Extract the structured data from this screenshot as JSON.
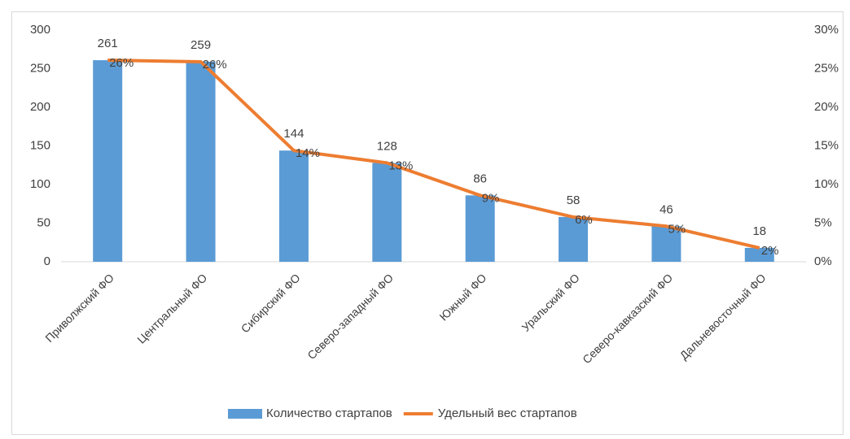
{
  "chart_data": {
    "type": "combo",
    "categories": [
      "Приволжский ФО",
      "Центральный ФО",
      "Сибирский ФО",
      "Северо-западный ФО",
      "Южный ФО",
      "Уральский ФО",
      "Северо-кавказский ФО",
      "Дальневосточный ФО"
    ],
    "series": [
      {
        "name": "Количество стартапов",
        "type": "bar",
        "color": "#5b9bd5",
        "values": [
          261,
          259,
          144,
          128,
          86,
          58,
          46,
          18
        ]
      },
      {
        "name": "Удельный вес стартапов",
        "type": "line",
        "axis": "y2",
        "color": "#ed7d31",
        "values": [
          26.1,
          25.9,
          14.4,
          12.8,
          8.6,
          5.8,
          4.6,
          1.8
        ],
        "value_labels": [
          "26%",
          "26%",
          "14%",
          "13%",
          "9%",
          "6%",
          "5%",
          "2%"
        ]
      }
    ],
    "ylim": [
      0,
      300
    ],
    "yticks": [
      0,
      50,
      100,
      150,
      200,
      250,
      300
    ],
    "y2lim": [
      0,
      30
    ],
    "y2ticks": [
      {
        "value": 0,
        "label": "0%"
      },
      {
        "value": 5,
        "label": "5%"
      },
      {
        "value": 10,
        "label": "10%"
      },
      {
        "value": 15,
        "label": "15%"
      },
      {
        "value": 20,
        "label": "20%"
      },
      {
        "value": 25,
        "label": "25%"
      },
      {
        "value": 30,
        "label": "30%"
      }
    ],
    "legend": "bottom"
  }
}
